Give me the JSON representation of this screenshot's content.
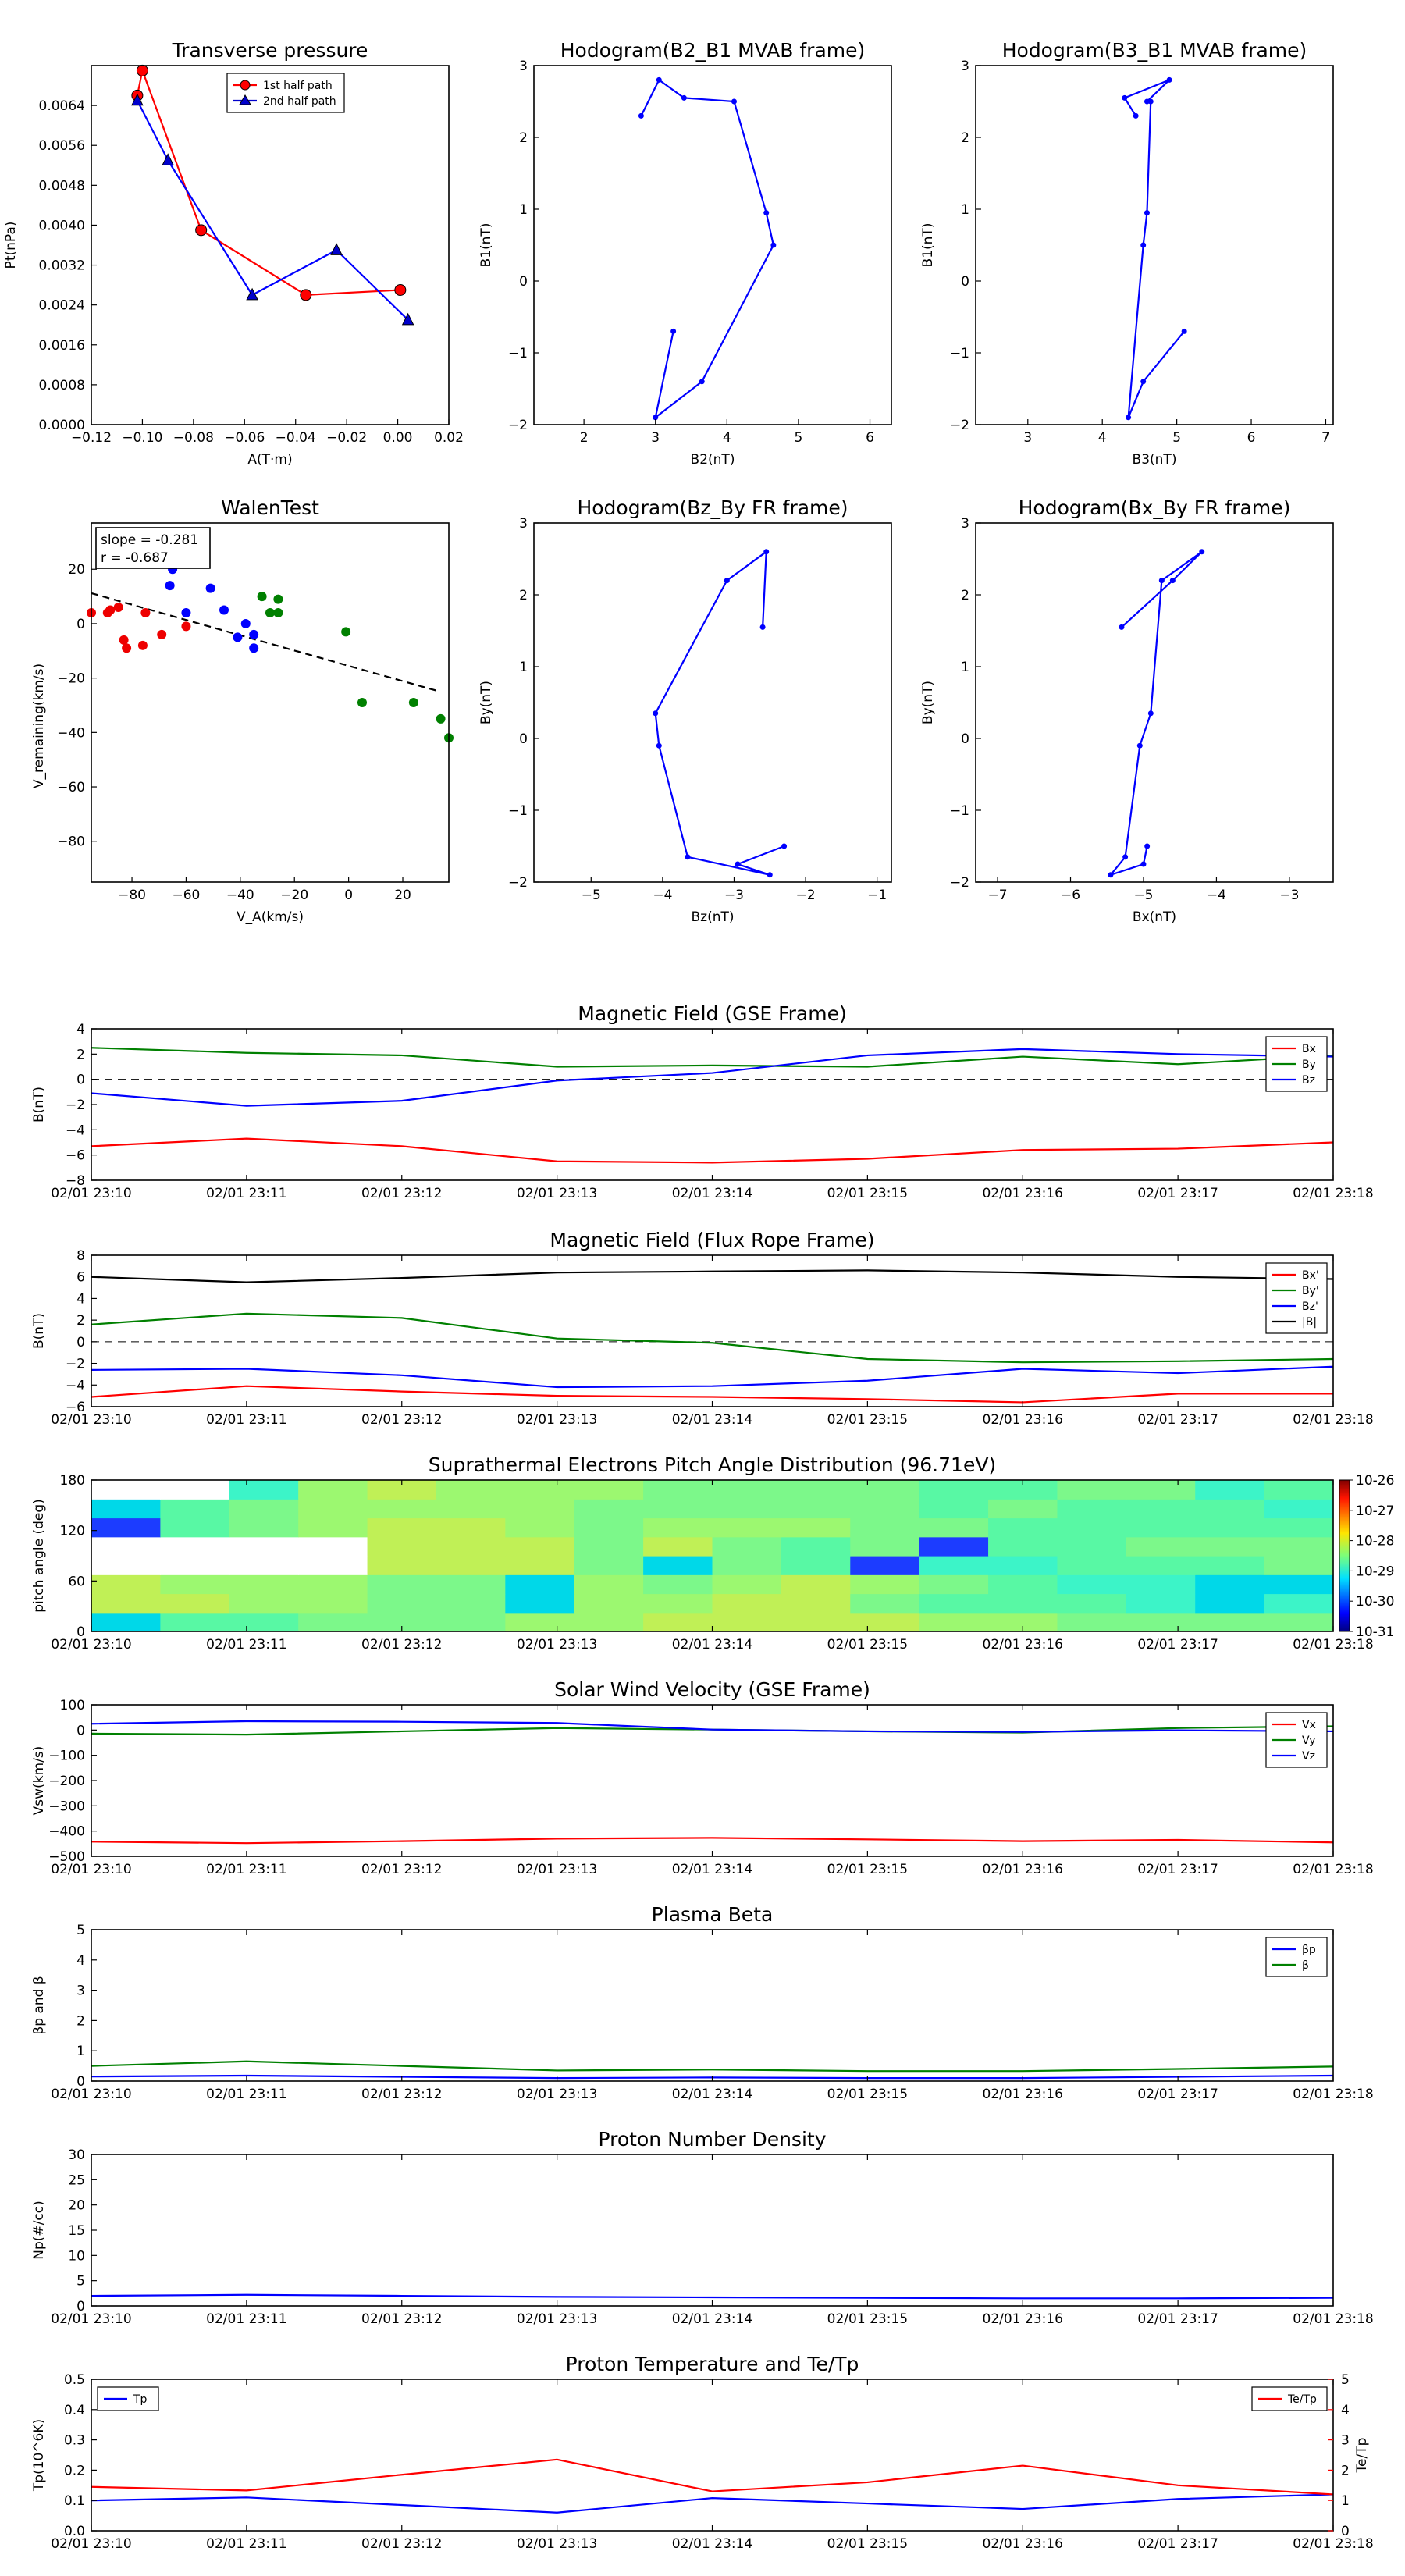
{
  "chart_data": [
    {
      "id": "tp",
      "type": "line",
      "title": "Transverse pressure",
      "xlabel": "A(T·m)",
      "ylabel": "Pt(nPa)",
      "xlim": [
        -0.12,
        0.02
      ],
      "ylim": [
        0,
        0.0072
      ],
      "xticks": [
        "−0.12",
        "−0.10",
        "−0.08",
        "−0.06",
        "−0.04",
        "−0.02",
        "0.00",
        "0.02"
      ],
      "yticks": [
        "0.0000",
        "0.0008",
        "0.0016",
        "0.0024",
        "0.0032",
        "0.0040",
        "0.0048",
        "0.0056",
        "0.0064"
      ],
      "legend": "top-center",
      "series": [
        {
          "name": "1st half path",
          "color": "#ff0000",
          "marker": "circle",
          "x": [
            -0.102,
            -0.1,
            -0.077,
            -0.036,
            0.001
          ],
          "y": [
            0.0066,
            0.0071,
            0.0039,
            0.0026,
            0.0027
          ]
        },
        {
          "name": "2nd half path",
          "color": "#0000cc",
          "marker": "triangle",
          "x": [
            -0.102,
            -0.09,
            -0.057,
            -0.024,
            0.004
          ],
          "y": [
            0.0065,
            0.0053,
            0.0026,
            0.0035,
            0.0021
          ]
        }
      ]
    },
    {
      "id": "h1",
      "type": "line",
      "title": "Hodogram(B2_B1 MVAB frame)",
      "xlabel": "B2(nT)",
      "ylabel": "B1(nT)",
      "xlim": [
        1.3,
        6.3
      ],
      "ylim": [
        -2,
        3
      ],
      "xticks_v": [
        2,
        3,
        4,
        5,
        6
      ],
      "xticks": [
        "2",
        "3",
        "4",
        "5",
        "6"
      ],
      "yticks_v": [
        -2,
        -1,
        0,
        1,
        2,
        3
      ],
      "yticks": [
        "−2",
        "−1",
        "0",
        "1",
        "2",
        "3"
      ],
      "series": [
        {
          "color": "#0000ff",
          "x": [
            3.25,
            3.0,
            3.65,
            4.65,
            4.55,
            4.1,
            3.4,
            3.05,
            2.8
          ],
          "y": [
            -0.7,
            -1.9,
            -1.4,
            0.5,
            0.95,
            2.5,
            2.55,
            2.8,
            2.3
          ]
        }
      ]
    },
    {
      "id": "h2",
      "type": "line",
      "title": "Hodogram(B3_B1 MVAB frame)",
      "xlabel": "B3(nT)",
      "ylabel": "B1(nT)",
      "xlim": [
        2.3,
        7.1
      ],
      "ylim": [
        -2,
        3
      ],
      "xticks_v": [
        3,
        4,
        5,
        6,
        7
      ],
      "xticks": [
        "3",
        "4",
        "5",
        "6",
        "7"
      ],
      "yticks_v": [
        -2,
        -1,
        0,
        1,
        2,
        3
      ],
      "yticks": [
        "−2",
        "−1",
        "0",
        "1",
        "2",
        "3"
      ],
      "series": [
        {
          "color": "#0000ff",
          "x": [
            5.1,
            4.55,
            4.35,
            4.55,
            4.6,
            4.65,
            4.6,
            4.9,
            4.3,
            4.45
          ],
          "y": [
            -0.7,
            -1.4,
            -1.9,
            0.5,
            0.95,
            2.5,
            2.5,
            2.8,
            2.55,
            2.3
          ]
        }
      ]
    },
    {
      "id": "walen",
      "type": "scatter",
      "title": "WalenTest",
      "xlabel": "V_A(km/s)",
      "ylabel": "V_remaining(km/s)",
      "xlim": [
        -95,
        37
      ],
      "ylim": [
        -95,
        37
      ],
      "xticks_v": [
        -80,
        -60,
        -40,
        -20,
        0,
        20
      ],
      "xticks": [
        "−80",
        "−60",
        "−40",
        "−20",
        "0",
        "20"
      ],
      "yticks_v": [
        -80,
        -60,
        -40,
        -20,
        0,
        20
      ],
      "yticks": [
        "−80",
        "−60",
        "−40",
        "−20",
        "0",
        "20"
      ],
      "annotation": [
        "slope = -0.281",
        "r = -0.687"
      ],
      "fit": {
        "slope": -0.281,
        "intercept": -15.5
      },
      "series": [
        {
          "color": "#ee0000",
          "x": [
            -95,
            -88,
            -85,
            -83,
            -82,
            -76,
            -75,
            -69,
            -60,
            -89
          ],
          "y": [
            4,
            5,
            6,
            -6,
            -9,
            -8,
            4,
            -4,
            -1,
            4
          ]
        },
        {
          "color": "#0000ff",
          "x": [
            -65,
            -66,
            -60,
            -51,
            -46,
            -41,
            -38,
            -35,
            -35
          ],
          "y": [
            20,
            14,
            4,
            13,
            5,
            -5,
            0,
            -4,
            -9
          ]
        },
        {
          "color": "#008000",
          "x": [
            -32,
            -29,
            -26,
            -26,
            -1,
            5,
            24,
            34,
            37
          ],
          "y": [
            10,
            4,
            4,
            9,
            -3,
            -29,
            -29,
            -35,
            -42
          ]
        }
      ]
    },
    {
      "id": "h3",
      "type": "line",
      "title": "Hodogram(Bz_By FR frame)",
      "xlabel": "Bz(nT)",
      "ylabel": "By(nT)",
      "xlim": [
        -5.8,
        -0.8
      ],
      "ylim": [
        -2,
        3
      ],
      "xticks_v": [
        -5,
        -4,
        -3,
        -2,
        -1
      ],
      "xticks": [
        "−5",
        "−4",
        "−3",
        "−2",
        "−1"
      ],
      "yticks_v": [
        -2,
        -1,
        0,
        1,
        2,
        3
      ],
      "yticks": [
        "−2",
        "−1",
        "0",
        "1",
        "2",
        "3"
      ],
      "series": [
        {
          "color": "#0000ff",
          "x": [
            -2.3,
            -2.95,
            -2.5,
            -3.65,
            -4.05,
            -4.1,
            -3.1,
            -2.55,
            -2.6
          ],
          "y": [
            -1.5,
            -1.75,
            -1.9,
            -1.65,
            -0.1,
            0.35,
            2.2,
            2.6,
            1.55
          ]
        }
      ]
    },
    {
      "id": "h4",
      "type": "line",
      "title": "Hodogram(Bx_By FR frame)",
      "xlabel": "Bx(nT)",
      "ylabel": "By(nT)",
      "xlim": [
        -7.3,
        -2.4
      ],
      "ylim": [
        -2,
        3
      ],
      "xticks_v": [
        -7,
        -6,
        -5,
        -4,
        -3
      ],
      "xticks": [
        "−7",
        "−6",
        "−5",
        "−4",
        "−3"
      ],
      "yticks_v": [
        -2,
        -1,
        0,
        1,
        2,
        3
      ],
      "yticks": [
        "−2",
        "−1",
        "0",
        "1",
        "2",
        "3"
      ],
      "series": [
        {
          "color": "#0000ff",
          "x": [
            -4.95,
            -5.0,
            -5.45,
            -5.25,
            -5.05,
            -4.9,
            -4.75,
            -4.2,
            -4.6,
            -5.3
          ],
          "y": [
            -1.5,
            -1.75,
            -1.9,
            -1.65,
            -0.1,
            0.35,
            2.2,
            2.6,
            2.2,
            1.55
          ]
        }
      ]
    },
    {
      "id": "bgse",
      "type": "line",
      "title": "Magnetic Field (GSE Frame)",
      "xlabel": "",
      "ylabel": "B(nT)",
      "times": [
        "02/01 23:10",
        "02/01 23:11",
        "02/01 23:12",
        "02/01 23:13",
        "02/01 23:14",
        "02/01 23:15",
        "02/01 23:16",
        "02/01 23:17",
        "02/01 23:18"
      ],
      "ylim": [
        -8,
        4
      ],
      "yticks_v": [
        -8,
        -6,
        -4,
        -2,
        0,
        2,
        4
      ],
      "yticks": [
        "−8",
        "−6",
        "−4",
        "−2",
        "0",
        "2",
        "4"
      ],
      "zero_line": true,
      "legend": "top-right",
      "series": [
        {
          "name": "Bx",
          "color": "#ff0000",
          "values": [
            -5.3,
            -4.7,
            -5.3,
            -6.5,
            -6.6,
            -6.3,
            -5.6,
            -5.5,
            -5.0
          ]
        },
        {
          "name": "By",
          "color": "#008000",
          "values": [
            2.5,
            2.1,
            1.9,
            1.0,
            1.1,
            1.0,
            1.8,
            1.2,
            1.9
          ]
        },
        {
          "name": "Bz",
          "color": "#0000ff",
          "values": [
            -1.1,
            -2.1,
            -1.7,
            -0.1,
            0.5,
            1.9,
            2.4,
            2.0,
            1.8
          ]
        }
      ]
    },
    {
      "id": "bfr",
      "type": "line",
      "title": "Magnetic Field (Flux Rope Frame)",
      "xlabel": "",
      "ylabel": "B(nT)",
      "times": [
        "02/01 23:10",
        "02/01 23:11",
        "02/01 23:12",
        "02/01 23:13",
        "02/01 23:14",
        "02/01 23:15",
        "02/01 23:16",
        "02/01 23:17",
        "02/01 23:18"
      ],
      "ylim": [
        -6,
        8
      ],
      "yticks_v": [
        -6,
        -4,
        -2,
        0,
        2,
        4,
        6,
        8
      ],
      "yticks": [
        "−6",
        "−4",
        "−2",
        "0",
        "2",
        "4",
        "6",
        "8"
      ],
      "zero_line": true,
      "legend": "top-right",
      "series": [
        {
          "name": "Bx'",
          "color": "#ff0000",
          "values": [
            -5.1,
            -4.1,
            -4.6,
            -5.0,
            -5.1,
            -5.3,
            -5.6,
            -4.8,
            -4.8
          ]
        },
        {
          "name": "By'",
          "color": "#008000",
          "values": [
            1.6,
            2.6,
            2.2,
            0.3,
            -0.1,
            -1.6,
            -1.9,
            -1.8,
            -1.6
          ]
        },
        {
          "name": "Bz'",
          "color": "#0000ff",
          "values": [
            -2.6,
            -2.5,
            -3.1,
            -4.2,
            -4.1,
            -3.6,
            -2.5,
            -2.9,
            -2.3
          ]
        },
        {
          "name": "|B|",
          "color": "#000000",
          "values": [
            6.0,
            5.5,
            5.9,
            6.4,
            6.5,
            6.6,
            6.4,
            6.0,
            5.8
          ]
        }
      ]
    },
    {
      "id": "pad",
      "type": "heatmap",
      "title": "Suprathermal Electrons Pitch Angle Distribution (96.71eV)",
      "xlabel": "",
      "ylabel": "pitch angle (deg)",
      "times": [
        "02/01 23:10",
        "02/01 23:11",
        "02/01 23:12",
        "02/01 23:13",
        "02/01 23:14",
        "02/01 23:15",
        "02/01 23:16",
        "02/01 23:17",
        "02/01 23:18"
      ],
      "ylim": [
        0,
        180
      ],
      "yticks_v": [
        0,
        60,
        120,
        180
      ],
      "yticks": [
        "0",
        "60",
        "120",
        "180"
      ],
      "colorbar_ticks": [
        "10-31",
        "10-30",
        "10-29",
        "10-28",
        "10-27",
        "10-26"
      ],
      "color_levels": {
        "0": "#ffffff",
        "1": "#1c3cff",
        "2": "#00d8e8",
        "3": "#3cf4c8",
        "4": "#58f8a4",
        "5": "#7cf88a",
        "6": "#9cf870",
        "7": "#c0f056"
      },
      "values": [
        [
          2,
          4,
          4,
          5,
          5,
          5,
          6,
          6,
          7,
          7,
          7,
          7,
          6,
          6,
          5,
          5,
          5,
          5
        ],
        [
          7,
          7,
          6,
          6,
          5,
          5,
          2,
          6,
          6,
          7,
          7,
          5,
          4,
          4,
          4,
          3,
          2,
          3
        ],
        [
          7,
          6,
          6,
          6,
          5,
          5,
          2,
          6,
          5,
          6,
          7,
          6,
          5,
          4,
          3,
          3,
          2,
          2
        ],
        [
          0,
          0,
          0,
          0,
          7,
          7,
          7,
          5,
          2,
          5,
          4,
          1,
          3,
          3,
          4,
          4,
          4,
          5
        ],
        [
          0,
          0,
          0,
          0,
          7,
          7,
          7,
          5,
          7,
          5,
          4,
          5,
          1,
          4,
          4,
          5,
          5,
          5
        ],
        [
          1,
          4,
          5,
          6,
          7,
          7,
          6,
          5,
          6,
          6,
          6,
          5,
          5,
          4,
          4,
          4,
          4,
          4
        ],
        [
          2,
          4,
          5,
          6,
          6,
          6,
          6,
          5,
          5,
          5,
          5,
          5,
          4,
          5,
          4,
          4,
          4,
          3
        ],
        [
          0,
          0,
          3,
          6,
          7,
          6,
          6,
          6,
          5,
          5,
          5,
          5,
          4,
          4,
          5,
          5,
          3,
          4
        ]
      ]
    },
    {
      "id": "vsw",
      "type": "line",
      "title": "Solar Wind Velocity (GSE Frame)",
      "xlabel": "",
      "ylabel": "Vsw(km/s)",
      "times": [
        "02/01 23:10",
        "02/01 23:11",
        "02/01 23:12",
        "02/01 23:13",
        "02/01 23:14",
        "02/01 23:15",
        "02/01 23:16",
        "02/01 23:17",
        "02/01 23:18"
      ],
      "ylim": [
        -500,
        100
      ],
      "yticks_v": [
        -500,
        -400,
        -300,
        -200,
        -100,
        0,
        100
      ],
      "yticks": [
        "−500",
        "−400",
        "−300",
        "−200",
        "−100",
        "0",
        "100"
      ],
      "legend": "top-right",
      "series": [
        {
          "name": "Vx",
          "color": "#ff0000",
          "values": [
            -442,
            -448,
            -440,
            -430,
            -427,
            -433,
            -440,
            -435,
            -445
          ]
        },
        {
          "name": "Vy",
          "color": "#008000",
          "values": [
            -14,
            -18,
            -5,
            8,
            2,
            -5,
            -10,
            8,
            15
          ]
        },
        {
          "name": "Vz",
          "color": "#0000ff",
          "values": [
            25,
            35,
            33,
            28,
            2,
            -5,
            -7,
            -1,
            -5
          ]
        }
      ]
    },
    {
      "id": "beta",
      "type": "line",
      "title": "Plasma Beta",
      "xlabel": "",
      "ylabel": "βp and β",
      "times": [
        "02/01 23:10",
        "02/01 23:11",
        "02/01 23:12",
        "02/01 23:13",
        "02/01 23:14",
        "02/01 23:15",
        "02/01 23:16",
        "02/01 23:17",
        "02/01 23:18"
      ],
      "ylim": [
        0,
        5
      ],
      "yticks_v": [
        0,
        1,
        2,
        3,
        4,
        5
      ],
      "yticks": [
        "0",
        "1",
        "2",
        "3",
        "4",
        "5"
      ],
      "legend": "top-right",
      "series": [
        {
          "name": "βp",
          "color": "#0000ff",
          "values": [
            0.15,
            0.18,
            0.14,
            0.1,
            0.12,
            0.1,
            0.1,
            0.14,
            0.18
          ]
        },
        {
          "name": "β",
          "color": "#008000",
          "values": [
            0.5,
            0.65,
            0.5,
            0.35,
            0.38,
            0.33,
            0.33,
            0.4,
            0.48
          ]
        }
      ]
    },
    {
      "id": "np",
      "type": "line",
      "title": "Proton Number Density",
      "xlabel": "",
      "ylabel": "Np(#/cc)",
      "times": [
        "02/01 23:10",
        "02/01 23:11",
        "02/01 23:12",
        "02/01 23:13",
        "02/01 23:14",
        "02/01 23:15",
        "02/01 23:16",
        "02/01 23:17",
        "02/01 23:18"
      ],
      "ylim": [
        0,
        30
      ],
      "yticks_v": [
        0,
        5,
        10,
        15,
        20,
        25,
        30
      ],
      "yticks": [
        "0",
        "5",
        "10",
        "15",
        "20",
        "25",
        "30"
      ],
      "series": [
        {
          "color": "#0000ff",
          "values": [
            2.0,
            2.2,
            2.0,
            1.8,
            1.7,
            1.6,
            1.5,
            1.5,
            1.6
          ]
        }
      ]
    },
    {
      "id": "temp",
      "type": "line",
      "title": "Proton Temperature and Te/Tp",
      "xlabel": "",
      "ylabel": "Tp(10^6K)",
      "ylabel_right": "Te/Tp",
      "times": [
        "02/01 23:10",
        "02/01 23:11",
        "02/01 23:12",
        "02/01 23:13",
        "02/01 23:14",
        "02/01 23:15",
        "02/01 23:16",
        "02/01 23:17",
        "02/01 23:18"
      ],
      "ylim": [
        0,
        0.5
      ],
      "ylim_right": [
        0,
        5
      ],
      "yticks_v": [
        0,
        0.1,
        0.2,
        0.3,
        0.4,
        0.5
      ],
      "yticks": [
        "0.0",
        "0.1",
        "0.2",
        "0.3",
        "0.4",
        "0.5"
      ],
      "yticks_right_v": [
        0,
        1,
        2,
        3,
        4,
        5
      ],
      "yticks_right": [
        "0",
        "1",
        "2",
        "3",
        "4",
        "5"
      ],
      "series": [
        {
          "name": "Tp",
          "color": "#0000ff",
          "axis": "left",
          "values": [
            0.1,
            0.11,
            0.085,
            0.06,
            0.108,
            0.09,
            0.072,
            0.105,
            0.12
          ]
        },
        {
          "name": "Te/Tp",
          "color": "#ff0000",
          "axis": "right",
          "values": [
            1.45,
            1.33,
            1.85,
            2.35,
            1.3,
            1.6,
            2.15,
            1.5,
            1.2
          ]
        }
      ]
    }
  ]
}
